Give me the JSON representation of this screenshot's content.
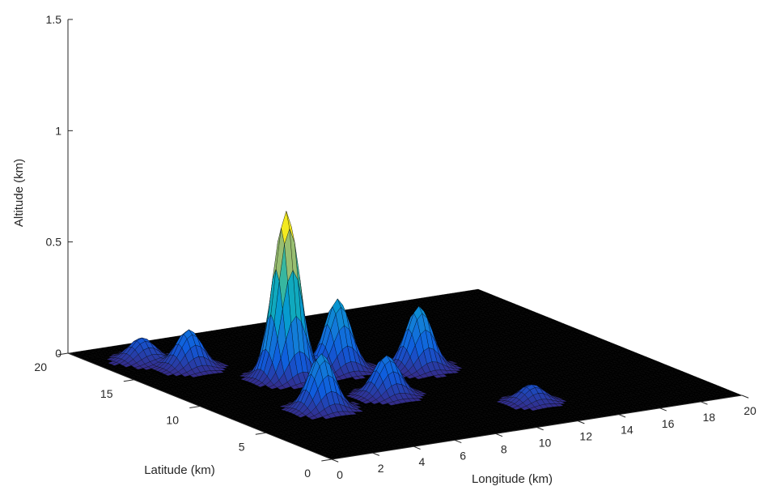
{
  "chart_data": {
    "type": "surface",
    "title": "",
    "xlabel": "Longitude (km)",
    "ylabel": "Latitude (km)",
    "zlabel": "Altitude (km)",
    "xlim": [
      0,
      20
    ],
    "ylim": [
      0,
      20
    ],
    "zlim": [
      0,
      1.5
    ],
    "x_ticks": [
      "0",
      "2",
      "4",
      "6",
      "8",
      "10",
      "12",
      "14",
      "16",
      "18",
      "20"
    ],
    "y_ticks": [
      "0",
      "5",
      "10",
      "15",
      "20"
    ],
    "z_ticks": [
      "0",
      "0.5",
      "1",
      "1.5"
    ],
    "colormap": "parula",
    "edge_color": "#000000",
    "grid": false,
    "peaks": [
      {
        "x": 5.5,
        "y": 12.0,
        "altitude": 0.75
      },
      {
        "x": 8.0,
        "y": 12.0,
        "altitude": 0.32
      },
      {
        "x": 11.0,
        "y": 10.5,
        "altitude": 0.28
      },
      {
        "x": 4.0,
        "y": 7.0,
        "altitude": 0.25
      },
      {
        "x": 7.5,
        "y": 7.5,
        "altitude": 0.18
      },
      {
        "x": 3.0,
        "y": 15.5,
        "altitude": 0.17
      },
      {
        "x": 12.0,
        "y": 3.5,
        "altitude": 0.08
      },
      {
        "x": 2.0,
        "y": 17.5,
        "altitude": 0.1
      }
    ]
  }
}
